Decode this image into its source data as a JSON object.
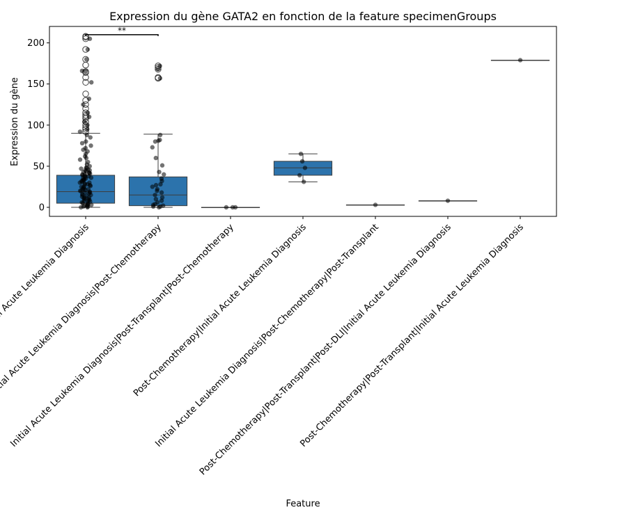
{
  "chart_data": {
    "type": "box",
    "title": "Expression du gène GATA2 en fonction de la feature specimenGroups",
    "xlabel": "Feature",
    "ylabel": "Expression du gène",
    "ylim": [
      -11,
      220
    ],
    "yticks": [
      0,
      50,
      100,
      150,
      200
    ],
    "grid": false,
    "legend": "none",
    "box_color": "#2c73ac",
    "point_color": "#000000",
    "categories": [
      "Initial Acute Leukemia Diagnosis",
      "Initial Acute Leukemia Diagnosis|Post-Chemotherapy",
      "Initial Acute Leukemia Diagnosis|Post-Transplant|Post-Chemotherapy",
      "Post-Chemotherapy|Initial Acute Leukemia Diagnosis",
      "Initial Acute Leukemia Diagnosis|Post-Chemotherapy|Post-Transplant",
      "Post-Chemotherapy|Post-Transplant|Post-DLI|Initial Acute Leukemia Diagnosis",
      "Post-Chemotherapy|Post-Transplant|Initial Acute Leukemia Diagnosis"
    ],
    "boxes": [
      {
        "whislo": 0,
        "q1": 5,
        "med": 19,
        "q3": 39,
        "whishi": 90,
        "fliers": [
          92,
          95,
          97,
          100,
          104,
          108,
          110,
          112,
          115,
          120,
          125,
          130,
          138,
          152,
          158,
          164,
          165,
          173,
          180,
          192,
          205,
          207,
          208
        ]
      },
      {
        "whislo": 0,
        "q1": 2,
        "med": 15,
        "q3": 37,
        "whishi": 89,
        "fliers": [
          157,
          158,
          168,
          170,
          172
        ]
      },
      {
        "whislo": 0,
        "q1": 0,
        "med": 0,
        "q3": 0,
        "whishi": 0,
        "fliers": []
      },
      {
        "whislo": 31,
        "q1": 39,
        "med": 48,
        "q3": 56,
        "whishi": 65,
        "fliers": []
      },
      {
        "whislo": 3,
        "q1": 3,
        "med": 3,
        "q3": 3,
        "whishi": 3,
        "fliers": []
      },
      {
        "whislo": 8,
        "q1": 8,
        "med": 8,
        "q3": 8,
        "whishi": 8,
        "fliers": []
      },
      {
        "whislo": 179,
        "q1": 179,
        "med": 179,
        "q3": 179,
        "whishi": 179,
        "fliers": []
      }
    ],
    "points": [
      [
        0,
        1,
        2,
        3,
        4,
        5,
        6,
        7,
        8,
        9,
        10,
        11,
        12,
        13,
        14,
        15,
        16,
        17,
        18,
        19,
        20,
        21,
        22,
        23,
        24,
        25,
        26,
        27,
        28,
        29,
        30,
        31,
        32,
        33,
        34,
        35,
        36,
        37,
        38,
        39,
        40,
        41,
        42,
        43,
        44,
        45,
        46,
        47,
        48,
        0,
        1,
        2,
        3,
        5,
        8,
        10,
        12,
        15,
        18,
        20,
        22,
        25,
        28,
        30,
        33,
        35,
        38,
        40,
        42,
        45,
        48,
        50,
        52,
        55,
        58,
        60,
        62,
        65,
        68,
        70,
        72,
        75,
        78,
        80,
        85,
        88,
        92,
        95,
        100,
        104,
        110,
        115,
        125,
        132,
        152,
        165,
        166,
        180,
        192,
        205
      ],
      [
        0,
        1,
        1,
        2,
        3,
        4,
        6,
        8,
        10,
        12,
        15,
        18,
        20,
        22,
        25,
        27,
        28,
        32,
        35,
        40,
        43,
        51,
        60,
        73,
        80,
        81,
        82,
        88,
        157,
        168,
        172
      ],
      [
        0,
        0,
        0
      ],
      [
        31,
        39,
        48,
        56,
        65
      ],
      [
        3
      ],
      [
        8
      ],
      [
        179
      ]
    ],
    "annotations": [
      {
        "text": "**",
        "from": 0,
        "to": 1,
        "y": 210
      }
    ]
  }
}
